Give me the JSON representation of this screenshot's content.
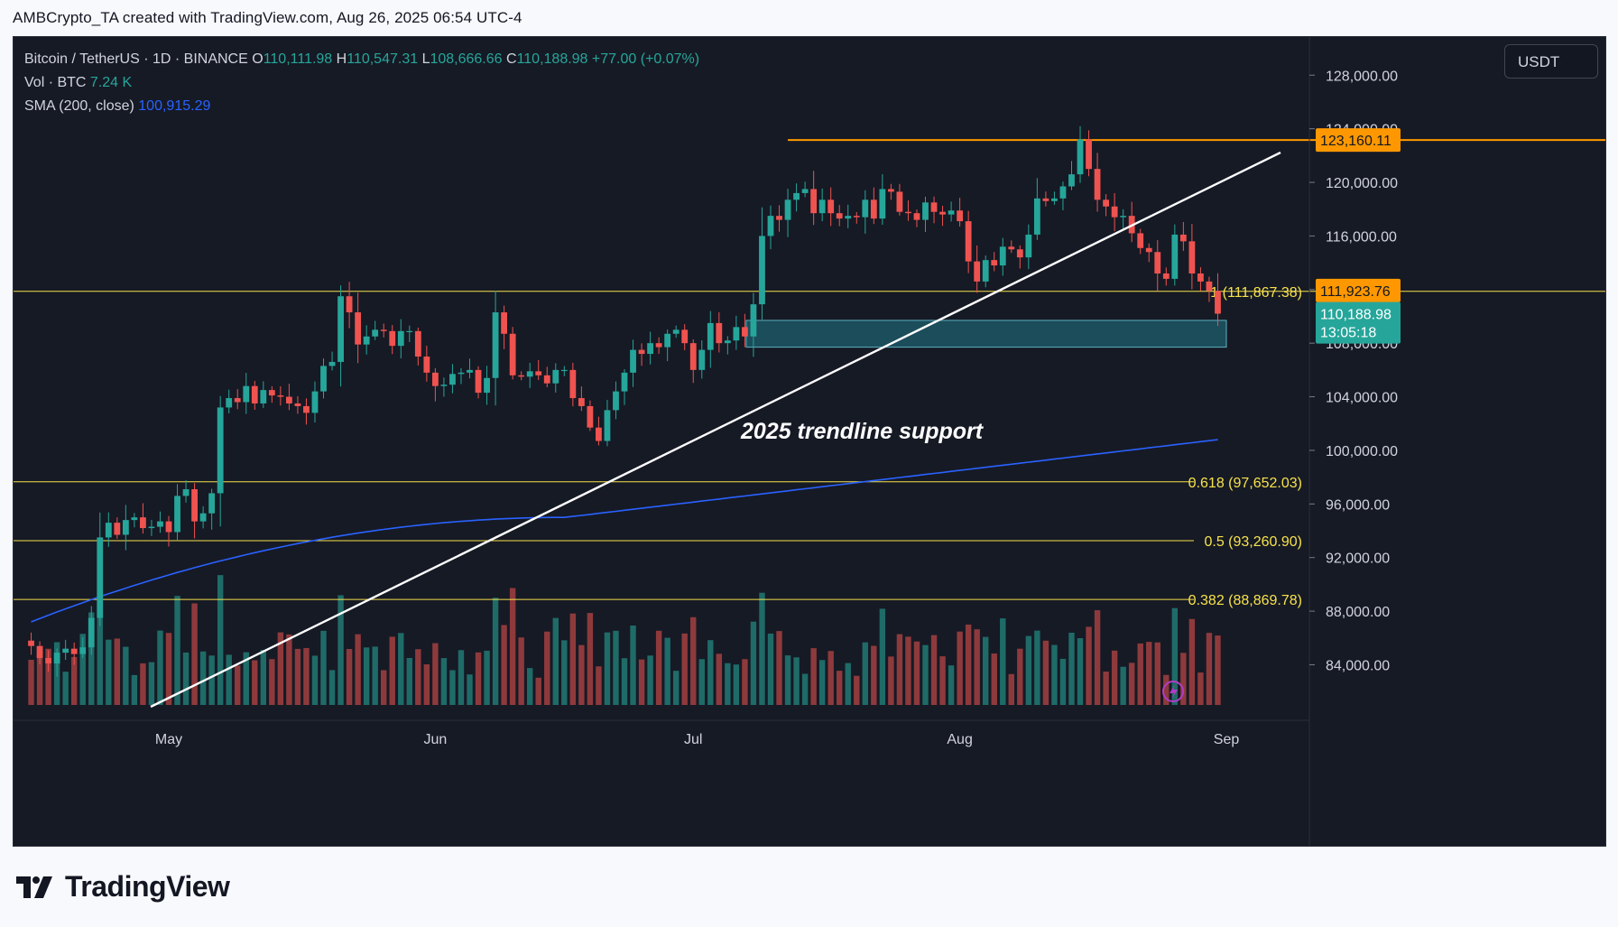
{
  "header": {
    "attribution": "AMBCrypto_TA created with TradingView.com, Aug 26, 2025 06:54 UTC-4"
  },
  "legend": {
    "symbol": "Bitcoin / TetherUS · 1D · BINANCE",
    "open_label": "O",
    "open": "110,111.98",
    "high_label": "H",
    "high": "110,547.31",
    "low_label": "L",
    "low": "108,666.66",
    "close_label": "C",
    "close": "110,188.98",
    "change": "+77.00 (+0.07%)",
    "vol_label": "Vol · BTC",
    "vol": "7.24 K",
    "sma_label": "SMA (200, close)",
    "sma": "100,915.29"
  },
  "unit_button": "USDT",
  "footer": {
    "brand": "TradingView"
  },
  "colors": {
    "background": "#161a25",
    "up": "#26a69a",
    "down": "#ef5350",
    "vol_up": "#1f6b68",
    "vol_down": "#8e3a3c",
    "fib": "#f7e24b",
    "resistance": "#ff9800",
    "sma": "#2962ff",
    "trendline": "#ffffff",
    "zone": "#1e5f6e"
  },
  "chart_data": {
    "type": "candlestick",
    "symbol": "BTCUSDT",
    "interval": "1D",
    "ylim": [
      81000,
      129500
    ],
    "y_ticks": [
      "84,000.00",
      "88,000.00",
      "92,000.00",
      "96,000.00",
      "100,000.00",
      "104,000.00",
      "108,000.00",
      "112,000.00",
      "116,000.00",
      "120,000.00",
      "124,000.00",
      "128,000.00"
    ],
    "x_labels": [
      {
        "label": "May",
        "date": "2025-05-01"
      },
      {
        "label": "Jun",
        "date": "2025-06-01"
      },
      {
        "label": "Jul",
        "date": "2025-07-01"
      },
      {
        "label": "Aug",
        "date": "2025-08-01"
      },
      {
        "label": "Sep",
        "date": "2025-09-01"
      }
    ],
    "first_candle_date": "2025-04-15",
    "last_candle_date": "2025-08-26",
    "closes": [
      85400,
      84500,
      84100,
      84900,
      85200,
      84800,
      85300,
      87500,
      93500,
      94600,
      93700,
      94800,
      95000,
      94200,
      94300,
      94700,
      93900,
      96600,
      97100,
      94700,
      95300,
      96800,
      103200,
      103900,
      103600,
      104800,
      103500,
      104500,
      104100,
      104000,
      103500,
      103300,
      102800,
      104400,
      106300,
      106600,
      111500,
      110300,
      107900,
      108500,
      109000,
      108900,
      107800,
      108900,
      108900,
      107000,
      105800,
      104800,
      104900,
      105700,
      105800,
      106000,
      104300,
      105400,
      110300,
      108700,
      105600,
      105500,
      105900,
      105600,
      105000,
      106000,
      106000,
      103900,
      103300,
      101700,
      100700,
      103000,
      104400,
      105800,
      107500,
      107200,
      108000,
      107700,
      108700,
      109000,
      108000,
      106000,
      107500,
      109500,
      108000,
      108200,
      109200,
      108500,
      110900,
      116000,
      117500,
      117200,
      118700,
      119200,
      119500,
      117700,
      118700,
      117700,
      117300,
      117500,
      117400,
      118700,
      117300,
      119500,
      119300,
      117800,
      117700,
      117200,
      118500,
      117800,
      117600,
      117900,
      117100,
      114100,
      112600,
      114200,
      113800,
      115200,
      115000,
      114400,
      116100,
      118800,
      118600,
      118800,
      119700,
      120600,
      123200,
      121000,
      118700,
      118200,
      117400,
      117500,
      116200,
      115100,
      114800,
      113200,
      112800,
      116100,
      115600,
      113200,
      112600,
      111900,
      110200
    ]
  },
  "annotations": {
    "trendline_label": "2025 trendline support",
    "fib_labels": [
      {
        "text": "1 (111,867.38)",
        "value": 111867.38
      },
      {
        "text": "0.618 (97,652.03)",
        "value": 97652.03
      },
      {
        "text": "0.5 (93,260.90)",
        "value": 93260.9
      },
      {
        "text": "0.382 (88,869.78)",
        "value": 88869.78
      }
    ],
    "resistance": {
      "value": 123160.11,
      "text": "123,160.11"
    },
    "price_tags": {
      "fib_one": "111,923.76",
      "last_price": "110,188.98",
      "countdown": "13:05:18"
    },
    "demand_zone": [
      107700,
      109700
    ]
  }
}
